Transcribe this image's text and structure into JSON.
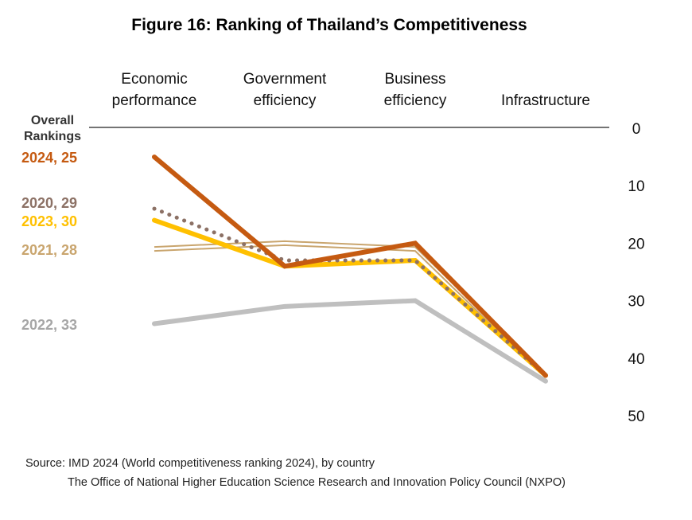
{
  "chart_data": {
    "type": "line",
    "title": "Figure 16: Ranking of Thailand’s Competitiveness",
    "categories": [
      [
        "Economic",
        "performance"
      ],
      [
        "Government",
        "efficiency"
      ],
      [
        "Business",
        "efficiency"
      ],
      [
        "Infrastructure"
      ]
    ],
    "y_ticks": [
      "0",
      "10",
      "20",
      "30",
      "40",
      "50"
    ],
    "ylim": [
      0,
      50
    ],
    "y_inverted": true,
    "legend_heading": [
      "Overall",
      "Rankings"
    ],
    "series": [
      {
        "name": "2024, 25",
        "rank": 25,
        "color": "#c55a11",
        "style": "solid-thick",
        "values": [
          5,
          24,
          20,
          43
        ]
      },
      {
        "name": "2020, 29",
        "rank": 29,
        "color": "#8c7165",
        "style": "dotted",
        "values": [
          14,
          23,
          23,
          43
        ]
      },
      {
        "name": "2023, 30",
        "rank": 30,
        "color": "#ffc000",
        "style": "solid-thick",
        "values": [
          16,
          24,
          23,
          43
        ]
      },
      {
        "name": "2021, 28",
        "rank": 28,
        "color": "#c9a56e",
        "style": "double-thin",
        "values": [
          21,
          20,
          21,
          43
        ]
      },
      {
        "name": "2022, 33",
        "rank": 33,
        "color": "#bfbfbf",
        "style": "solid-thick",
        "values": [
          34,
          31,
          30,
          44
        ]
      }
    ]
  },
  "source": "Source: IMD 2024 (World competitiveness ranking 2024), by country",
  "source_org": "The Office of National Higher Education Science Research and Innovation Policy Council (NXPO)"
}
